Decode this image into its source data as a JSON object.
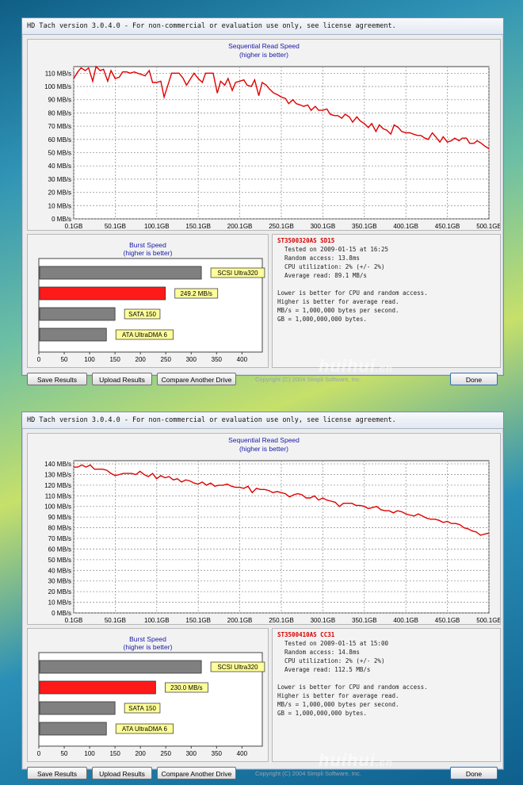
{
  "windows": [
    {
      "title": "HD Tach version 3.0.4.0  - For non-commercial or evaluation use only, see license agreement.",
      "seq_title": "Sequential Read Speed",
      "seq_subtitle": "(higher is better)",
      "burst_title": "Burst Speed",
      "burst_subtitle": "(higher is better)",
      "drive": "ST3500320AS SD15",
      "tested_on": "Tested on 2009-01-15 at 16:25",
      "random_access": "Random access: 13.8ms",
      "cpu": "CPU utilization: 2% (+/- 2%)",
      "avg_read": "Average read: 89.1 MB/s",
      "notes": [
        "Lower is better for CPU and random access.",
        "Higher is better for average read.",
        "MB/s = 1,000,000 bytes per second.",
        "GB = 1,000,000,000 bytes."
      ],
      "buttons": {
        "save": "Save Results",
        "upload": "Upload Results",
        "compare": "Compare Another Drive",
        "done": "Done"
      },
      "copyright": "Copyright (C) 2004 Simpli Software, Inc.",
      "watermark": "huihui",
      "watermark_sub": "cn",
      "chart_data": [
        {
          "type": "line",
          "title": "Sequential Read Speed",
          "subtitle": "(higher is better)",
          "x_ticks": [
            "0.1GB",
            "50.1GB",
            "100.1GB",
            "150.1GB",
            "200.1GB",
            "250.1GB",
            "300.1GB",
            "350.1GB",
            "400.1GB",
            "450.1GB",
            "500.1GB"
          ],
          "y_ticks": [
            "0 MB/s",
            "10 MB/s",
            "20 MB/s",
            "30 MB/s",
            "40 MB/s",
            "50 MB/s",
            "60 MB/s",
            "70 MB/s",
            "80 MB/s",
            "90 MB/s",
            "100 MB/s",
            "110 MB/s"
          ],
          "xlim": [
            0.1,
            500.1
          ],
          "ylim": [
            0,
            115
          ],
          "grid": true,
          "series": [
            {
              "color": "#e00000",
              "x": [
                0.1,
                5,
                9,
                14,
                18,
                23,
                27,
                32,
                36,
                41,
                45,
                50,
                55,
                59,
                64,
                68,
                73,
                77,
                82,
                86,
                91,
                95,
                100,
                105,
                109,
                114,
                118,
                123,
                127,
                132,
                136,
                141,
                145,
                150,
                155,
                159,
                164,
                168,
                173,
                177,
                182,
                186,
                191,
                195,
                200,
                205,
                209,
                214,
                218,
                223,
                227,
                232,
                236,
                241,
                245,
                250,
                255,
                259,
                264,
                268,
                273,
                277,
                282,
                286,
                291,
                295,
                300,
                305,
                309,
                314,
                318,
                323,
                327,
                332,
                336,
                341,
                345,
                350,
                355,
                359,
                364,
                368,
                373,
                377,
                382,
                386,
                391,
                395,
                400,
                405,
                409,
                414,
                418,
                423,
                427,
                432,
                436,
                441,
                445,
                450,
                455,
                459,
                464,
                468,
                473,
                477,
                482,
                486,
                491,
                495,
                500.1
              ],
              "y": [
                106,
                111,
                114,
                112,
                114,
                104,
                115,
                112,
                113,
                104,
                112,
                106,
                107,
                111,
                111,
                110,
                111,
                110,
                109,
                108,
                112,
                103,
                103,
                104,
                92,
                102,
                110,
                110,
                110,
                106,
                101,
                106,
                110,
                106,
                103,
                110,
                110,
                110,
                95,
                104,
                101,
                106,
                97,
                103,
                104,
                105,
                101,
                100,
                105,
                93,
                103,
                101,
                98,
                95,
                94,
                92,
                91,
                87,
                90,
                87,
                86,
                85,
                86,
                82,
                85,
                82,
                82,
                83,
                79,
                78,
                78,
                76,
                79,
                77,
                73,
                77,
                74,
                72,
                69,
                72,
                66,
                71,
                68,
                67,
                64,
                71,
                69,
                66,
                65,
                65,
                64,
                63,
                63,
                61,
                60,
                65,
                62,
                58,
                62,
                58,
                59,
                61,
                59,
                61,
                61,
                57,
                57,
                59,
                57,
                55,
                53
              ]
            }
          ],
          "bars_type": "bar"
        },
        {
          "type": "bar",
          "title": "Burst Speed",
          "subtitle": "(higher is better)",
          "x_ticks": [
            "0",
            "50",
            "100",
            "150",
            "200",
            "250",
            "300",
            "350",
            "400"
          ],
          "xlim": [
            0,
            440
          ],
          "categories": [
            "SCSI Ultra320",
            "249.2 MB/s",
            "SATA 150",
            "ATA UltraDMA 6"
          ],
          "values": [
            320,
            249.2,
            150,
            133
          ],
          "colors": [
            "#808080",
            "#ff1a1a",
            "#808080",
            "#808080"
          ]
        }
      ]
    },
    {
      "title": "HD Tach version 3.0.4.0  - For non-commercial or evaluation use only, see license agreement.",
      "seq_title": "Sequential Read Speed",
      "seq_subtitle": "(higher is better)",
      "burst_title": "Burst Speed",
      "burst_subtitle": "(higher is better)",
      "drive": "ST3500410AS CC31",
      "tested_on": "Tested on 2009-01-15 at 15:00",
      "random_access": "Random access: 14.8ms",
      "cpu": "CPU utilization: 2% (+/- 2%)",
      "avg_read": "Average read: 112.5 MB/s",
      "notes": [
        "Lower is better for CPU and random access.",
        "Higher is better for average read.",
        "MB/s = 1,000,000 bytes per second.",
        "GB = 1,000,000,000 bytes."
      ],
      "buttons": {
        "save": "Save Results",
        "upload": "Upload Results",
        "compare": "Compare Another Drive",
        "done": "Done"
      },
      "copyright": "Copyright (C) 2004 Simpli Software, Inc.",
      "watermark": "huihui",
      "watermark_sub": "cn",
      "chart_data": [
        {
          "type": "line",
          "title": "Sequential Read Speed",
          "subtitle": "(higher is better)",
          "x_ticks": [
            "0.1GB",
            "50.1GB",
            "100.1GB",
            "150.1GB",
            "200.1GB",
            "250.1GB",
            "300.1GB",
            "350.1GB",
            "400.1GB",
            "450.1GB",
            "500.1GB"
          ],
          "y_ticks": [
            "0 MB/s",
            "10 MB/s",
            "20 MB/s",
            "30 MB/s",
            "40 MB/s",
            "50 MB/s",
            "60 MB/s",
            "70 MB/s",
            "80 MB/s",
            "90 MB/s",
            "100 MB/s",
            "110 MB/s",
            "120 MB/s",
            "130 MB/s",
            "140 MB/s"
          ],
          "xlim": [
            0.1,
            500.1
          ],
          "ylim": [
            0,
            143
          ],
          "grid": true,
          "series": [
            {
              "color": "#e00000",
              "x": [
                0.1,
                5,
                10,
                15,
                20,
                25,
                30,
                35,
                40,
                45,
                50,
                55,
                60,
                65,
                70,
                75,
                80,
                85,
                90,
                95,
                100,
                105,
                110,
                115,
                120,
                125,
                130,
                135,
                140,
                145,
                150,
                155,
                160,
                165,
                170,
                175,
                180,
                185,
                190,
                195,
                200,
                205,
                210,
                215,
                220,
                225,
                230,
                235,
                240,
                245,
                250,
                255,
                260,
                265,
                270,
                275,
                280,
                285,
                290,
                295,
                300,
                305,
                310,
                315,
                320,
                325,
                330,
                335,
                340,
                345,
                350,
                355,
                360,
                365,
                370,
                375,
                380,
                385,
                390,
                395,
                400,
                405,
                410,
                415,
                420,
                425,
                430,
                435,
                440,
                445,
                450,
                455,
                460,
                465,
                470,
                475,
                480,
                485,
                490,
                495,
                500.1
              ],
              "y": [
                137,
                137,
                139,
                137,
                139,
                135,
                135,
                135,
                134,
                131,
                129,
                130,
                131,
                131,
                131,
                130,
                133,
                130,
                128,
                131,
                126,
                129,
                127,
                128,
                125,
                126,
                123,
                125,
                124,
                122,
                121,
                123,
                120,
                122,
                119,
                120,
                120,
                121,
                119,
                118,
                118,
                117,
                119,
                113,
                117,
                116,
                116,
                115,
                113,
                114,
                113,
                112,
                109,
                111,
                112,
                111,
                108,
                108,
                110,
                106,
                108,
                106,
                105,
                104,
                100,
                103,
                103,
                103,
                101,
                101,
                100,
                98,
                99,
                100,
                97,
                96,
                96,
                94,
                96,
                95,
                93,
                92,
                91,
                93,
                91,
                89,
                88,
                88,
                87,
                85,
                86,
                84,
                84,
                83,
                80,
                79,
                77,
                76,
                73,
                74,
                75
              ]
            }
          ]
        },
        {
          "type": "bar",
          "title": "Burst Speed",
          "subtitle": "(higher is better)",
          "x_ticks": [
            "0",
            "50",
            "100",
            "150",
            "200",
            "250",
            "300",
            "350",
            "400"
          ],
          "xlim": [
            0,
            440
          ],
          "categories": [
            "SCSI Ultra320",
            "230.0 MB/s",
            "SATA 150",
            "ATA UltraDMA 6"
          ],
          "values": [
            320,
            230.0,
            150,
            133
          ],
          "colors": [
            "#808080",
            "#ff1a1a",
            "#808080",
            "#808080"
          ]
        }
      ]
    }
  ]
}
